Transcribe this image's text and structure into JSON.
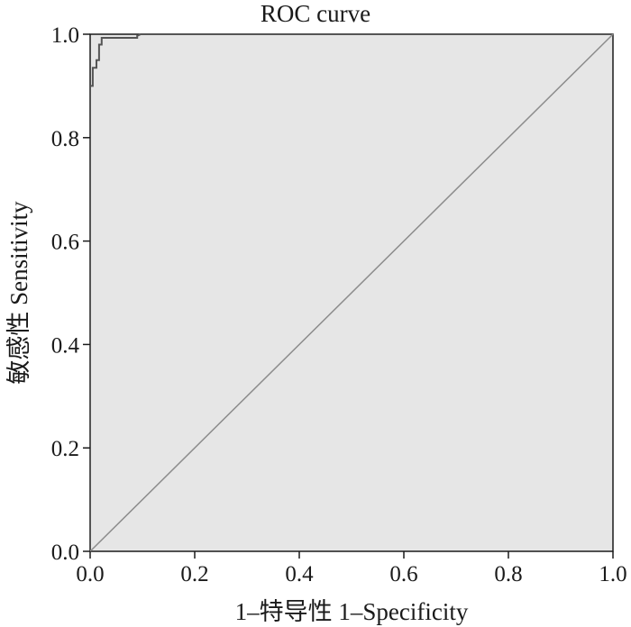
{
  "chart_data": {
    "type": "line",
    "title": "ROC curve",
    "xlabel": "1–特导性  1–Specificity",
    "ylabel": "敏感性  Sensitivity",
    "xlim": [
      0,
      1
    ],
    "ylim": [
      0,
      1
    ],
    "x_ticks": [
      "0.0",
      "0.2",
      "0.4",
      "0.6",
      "0.8",
      "1.0"
    ],
    "y_ticks": [
      "0.0",
      "0.2",
      "0.4",
      "0.6",
      "0.8",
      "1.0"
    ],
    "grid": false,
    "legend": "none",
    "series": [
      {
        "x": [
          0,
          0,
          0.005,
          0.005,
          0.012,
          0.012,
          0.017,
          0.017,
          0.022,
          0.022,
          0.09,
          0.09,
          0.097,
          1.0
        ],
        "y": [
          0,
          0.9,
          0.9,
          0.935,
          0.935,
          0.95,
          0.95,
          0.98,
          0.98,
          0.993,
          0.993,
          0.997,
          1.0,
          1.0
        ]
      },
      {
        "x": [
          0,
          1
        ],
        "y": [
          0,
          1
        ]
      }
    ],
    "colors": {
      "plot_background": "#e6e6e6",
      "roc_line": "#555555",
      "reference_line": "#8c8c8c",
      "frame": "#1a1a1a"
    }
  }
}
